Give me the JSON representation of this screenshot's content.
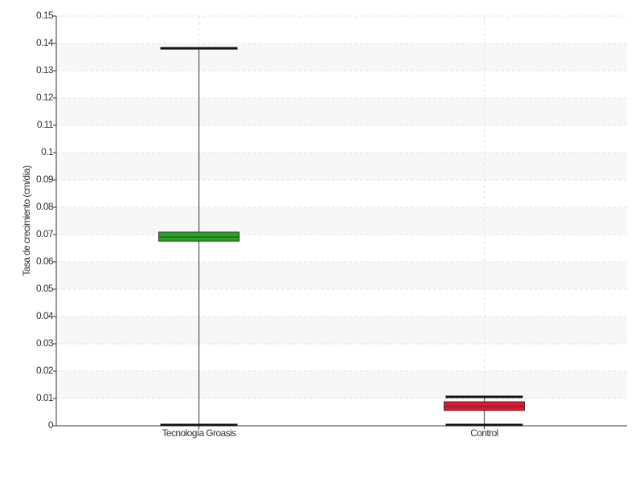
{
  "chart_data": {
    "type": "box",
    "y_label": "Tasa de crecimiento (cm/día)",
    "categories": [
      "Tecnología Groasis",
      "Control"
    ],
    "boxes": [
      {
        "min": 0.0003,
        "q1": 0.0676,
        "median": 0.0691,
        "q3": 0.0709,
        "max": 0.1382,
        "color": "#22a81a"
      },
      {
        "min": 0.0003,
        "q1": 0.0056,
        "median": 0.0071,
        "q3": 0.0088,
        "max": 0.0106,
        "color": "#ee1130"
      }
    ],
    "ylim": [
      0,
      0.15
    ],
    "yticks": [
      0,
      0.01,
      0.02,
      0.03,
      0.04,
      0.05,
      0.06,
      0.07,
      0.08,
      0.09,
      0.1,
      0.11,
      0.12,
      0.13,
      0.14,
      0.15
    ],
    "grid": true
  }
}
